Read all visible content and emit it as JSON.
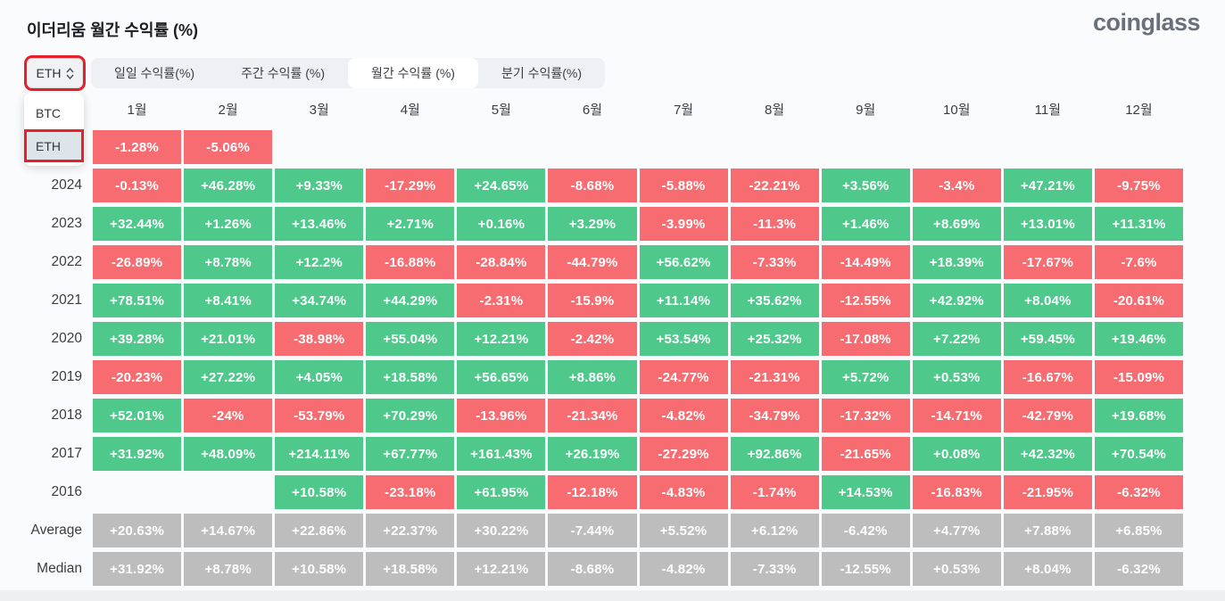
{
  "page": {
    "title": "이더리움 월간 수익률 (%)",
    "brand": "coinglass"
  },
  "controls": {
    "coin_selector": {
      "value": "ETH"
    },
    "dropdown": {
      "options": [
        "BTC",
        "ETH"
      ],
      "selected": "ETH"
    },
    "tabs": [
      {
        "label": "일일 수익률(%)",
        "active": false
      },
      {
        "label": "주간 수익률 (%)",
        "active": false
      },
      {
        "label": "월간 수익률 (%)",
        "active": true
      },
      {
        "label": "분기 수익률(%)",
        "active": false
      }
    ]
  },
  "colors": {
    "positive": "#4ec98b",
    "negative": "#f66c70",
    "neutral": "#bdbdbd",
    "annotation": "#e62129"
  },
  "chart_data": {
    "type": "heatmap",
    "title": "이더리움 월간 수익률 (%)",
    "columns": [
      "1월",
      "2월",
      "3월",
      "4월",
      "5월",
      "6월",
      "7월",
      "8월",
      "9월",
      "10월",
      "11월",
      "12월"
    ],
    "rows": [
      {
        "label": "",
        "tone": "normal",
        "values": [
          "-1.28%",
          "-5.06%",
          "",
          "",
          "",
          "",
          "",
          "",
          "",
          "",
          "",
          ""
        ]
      },
      {
        "label": "2024",
        "tone": "normal",
        "values": [
          "-0.13%",
          "+46.28%",
          "+9.33%",
          "-17.29%",
          "+24.65%",
          "-8.68%",
          "-5.88%",
          "-22.21%",
          "+3.56%",
          "-3.4%",
          "+47.21%",
          "-9.75%"
        ]
      },
      {
        "label": "2023",
        "tone": "normal",
        "values": [
          "+32.44%",
          "+1.26%",
          "+13.46%",
          "+2.71%",
          "+0.16%",
          "+3.29%",
          "-3.99%",
          "-11.3%",
          "+1.46%",
          "+8.69%",
          "+13.01%",
          "+11.31%"
        ]
      },
      {
        "label": "2022",
        "tone": "normal",
        "values": [
          "-26.89%",
          "+8.78%",
          "+12.2%",
          "-16.88%",
          "-28.84%",
          "-44.79%",
          "+56.62%",
          "-7.33%",
          "-14.49%",
          "+18.39%",
          "-17.67%",
          "-7.6%"
        ]
      },
      {
        "label": "2021",
        "tone": "normal",
        "values": [
          "+78.51%",
          "+8.41%",
          "+34.74%",
          "+44.29%",
          "-2.31%",
          "-15.9%",
          "+11.14%",
          "+35.62%",
          "-12.55%",
          "+42.92%",
          "+8.04%",
          "-20.61%"
        ]
      },
      {
        "label": "2020",
        "tone": "normal",
        "values": [
          "+39.28%",
          "+21.01%",
          "-38.98%",
          "+55.04%",
          "+12.21%",
          "-2.42%",
          "+53.54%",
          "+25.32%",
          "-17.08%",
          "+7.22%",
          "+59.45%",
          "+19.46%"
        ]
      },
      {
        "label": "2019",
        "tone": "normal",
        "values": [
          "-20.23%",
          "+27.22%",
          "+4.05%",
          "+18.58%",
          "+56.65%",
          "+8.86%",
          "-24.77%",
          "-21.31%",
          "+5.72%",
          "+0.53%",
          "-16.67%",
          "-15.09%"
        ]
      },
      {
        "label": "2018",
        "tone": "normal",
        "values": [
          "+52.01%",
          "-24%",
          "-53.79%",
          "+70.29%",
          "-13.96%",
          "-21.34%",
          "-4.82%",
          "-34.79%",
          "-17.32%",
          "-14.71%",
          "-42.79%",
          "+19.68%"
        ]
      },
      {
        "label": "2017",
        "tone": "normal",
        "values": [
          "+31.92%",
          "+48.09%",
          "+214.11%",
          "+67.77%",
          "+161.43%",
          "+26.19%",
          "-27.29%",
          "+92.86%",
          "-21.65%",
          "+0.08%",
          "+42.32%",
          "+70.54%"
        ]
      },
      {
        "label": "2016",
        "tone": "normal",
        "values": [
          "",
          "",
          "+10.58%",
          "-23.18%",
          "+61.95%",
          "-12.18%",
          "-4.83%",
          "-1.74%",
          "+14.53%",
          "-16.83%",
          "-21.95%",
          "-6.32%"
        ]
      },
      {
        "label": "Average",
        "tone": "gray",
        "values": [
          "+20.63%",
          "+14.67%",
          "+22.86%",
          "+22.37%",
          "+30.22%",
          "-7.44%",
          "+5.52%",
          "+6.12%",
          "-6.42%",
          "+4.77%",
          "+7.88%",
          "+6.85%"
        ]
      },
      {
        "label": "Median",
        "tone": "gray",
        "values": [
          "+31.92%",
          "+8.78%",
          "+10.58%",
          "+18.58%",
          "+12.21%",
          "-8.68%",
          "-4.82%",
          "-7.33%",
          "-12.55%",
          "+0.53%",
          "+8.04%",
          "-6.32%"
        ]
      }
    ]
  }
}
